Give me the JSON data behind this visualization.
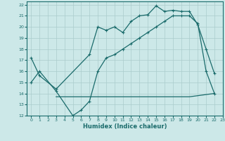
{
  "xlabel": "Humidex (Indice chaleur)",
  "bg_color": "#cce8e8",
  "line_color": "#1a6b6b",
  "grid_color": "#aacccc",
  "xlim": [
    -0.5,
    23
  ],
  "ylim": [
    12,
    22.3
  ],
  "xticks": [
    0,
    1,
    2,
    3,
    4,
    5,
    6,
    7,
    8,
    9,
    10,
    11,
    12,
    13,
    14,
    15,
    16,
    17,
    18,
    19,
    20,
    21,
    22,
    23
  ],
  "yticks": [
    12,
    13,
    14,
    15,
    16,
    17,
    18,
    19,
    20,
    21,
    22
  ],
  "line1_x": [
    0,
    1,
    3,
    7,
    8,
    9,
    10,
    11,
    12,
    13,
    14,
    15,
    16,
    17,
    18,
    19,
    20,
    21,
    22
  ],
  "line1_y": [
    17.2,
    15.6,
    14.4,
    17.5,
    20.0,
    19.7,
    20.0,
    19.5,
    20.5,
    21.0,
    21.1,
    21.9,
    21.4,
    21.5,
    21.4,
    21.4,
    20.2,
    18.0,
    15.8
  ],
  "line2_x": [
    0,
    1,
    3,
    5,
    6,
    7,
    8,
    9,
    10,
    11,
    12,
    13,
    14,
    15,
    16,
    17,
    18,
    19,
    20,
    21,
    22
  ],
  "line2_y": [
    15.0,
    16.0,
    14.2,
    12.0,
    12.5,
    13.3,
    16.0,
    17.2,
    17.5,
    18.0,
    18.5,
    19.0,
    19.5,
    20.0,
    20.5,
    21.0,
    21.0,
    21.0,
    20.3,
    16.0,
    14.0
  ],
  "line3_x": [
    3,
    9,
    19,
    22
  ],
  "line3_y": [
    13.7,
    13.7,
    13.7,
    14.0
  ]
}
